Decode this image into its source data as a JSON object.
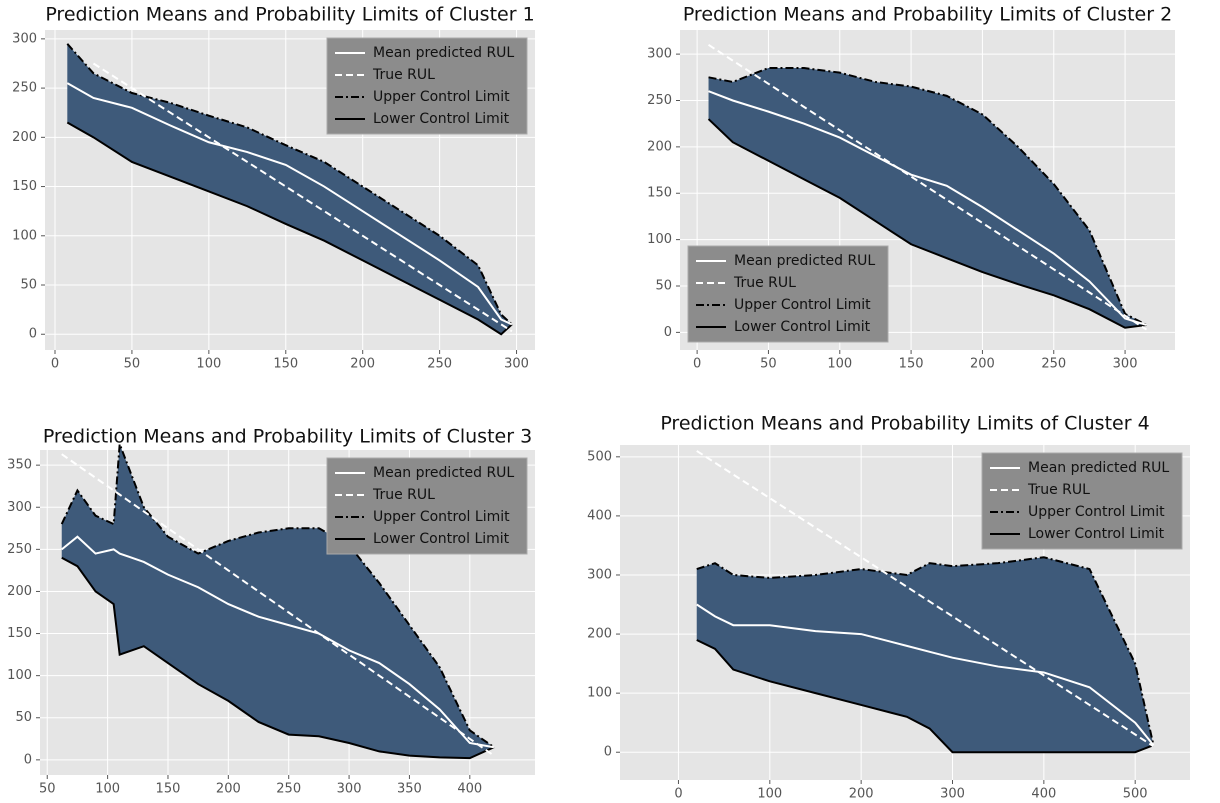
{
  "chart_data": [
    {
      "type": "line",
      "title": "Prediction Means and Probability Limits of Cluster 1",
      "x": [
        8,
        25,
        50,
        75,
        100,
        125,
        150,
        175,
        200,
        225,
        250,
        275,
        290,
        297
      ],
      "series": [
        {
          "name": "Mean predicted RUL",
          "color": "#ffffff",
          "dash": "solid",
          "values": [
            255,
            240,
            230,
            212,
            195,
            185,
            172,
            150,
            125,
            100,
            75,
            48,
            15,
            10
          ]
        },
        {
          "name": "True RUL",
          "color": "#ffffff",
          "dash": "dashed",
          "values": [
            null,
            275,
            250,
            225,
            200,
            175,
            150,
            125,
            100,
            75,
            50,
            25,
            10,
            3
          ]
        },
        {
          "name": "Upper Control Limit",
          "color": "#000000",
          "dash": "dashdot",
          "values": [
            295,
            265,
            245,
            235,
            222,
            210,
            192,
            175,
            150,
            125,
            100,
            70,
            20,
            10
          ]
        },
        {
          "name": "Lower Control Limit",
          "color": "#000000",
          "dash": "solid",
          "values": [
            215,
            200,
            175,
            160,
            145,
            130,
            112,
            95,
            75,
            55,
            35,
            15,
            0,
            10
          ]
        }
      ],
      "fill_color": "#3e5a7a",
      "xlim": [
        -6.5,
        312
      ],
      "ylim": [
        -16,
        309
      ],
      "xticks": [
        0,
        50,
        100,
        150,
        200,
        250,
        300
      ],
      "yticks": [
        0,
        50,
        100,
        150,
        200,
        250,
        300
      ],
      "grid": true,
      "legend": "upper right"
    },
    {
      "type": "line",
      "title": "Prediction Means and Probability Limits of Cluster 2",
      "x": [
        8,
        25,
        50,
        75,
        100,
        125,
        150,
        175,
        200,
        225,
        250,
        275,
        300,
        315
      ],
      "series": [
        {
          "name": "Mean predicted RUL",
          "color": "#ffffff",
          "dash": "solid",
          "values": [
            260,
            250,
            238,
            225,
            210,
            190,
            170,
            158,
            135,
            110,
            85,
            55,
            15,
            8
          ]
        },
        {
          "name": "True RUL",
          "color": "#ffffff",
          "dash": "dashed",
          "values": [
            310,
            293,
            268,
            243,
            218,
            193,
            168,
            143,
            118,
            93,
            68,
            43,
            18,
            3
          ]
        },
        {
          "name": "Upper Control Limit",
          "color": "#000000",
          "dash": "dashdot",
          "values": [
            275,
            270,
            285,
            285,
            280,
            270,
            265,
            255,
            235,
            200,
            160,
            110,
            20,
            8
          ]
        },
        {
          "name": "Lower Control Limit",
          "color": "#000000",
          "dash": "solid",
          "values": [
            230,
            205,
            185,
            165,
            145,
            120,
            95,
            80,
            65,
            52,
            40,
            25,
            5,
            8
          ]
        }
      ],
      "fill_color": "#3e5a7a",
      "xlim": [
        -12,
        335
      ],
      "ylim": [
        -19,
        326
      ],
      "xticks": [
        0,
        50,
        100,
        150,
        200,
        250,
        300
      ],
      "yticks": [
        0,
        50,
        100,
        150,
        200,
        250,
        300
      ],
      "grid": true,
      "legend": "lower left"
    },
    {
      "type": "line",
      "title": "Prediction Means and Probability Limits of Cluster 3",
      "x": [
        62,
        75,
        90,
        105,
        110,
        130,
        150,
        175,
        200,
        225,
        250,
        275,
        300,
        325,
        350,
        375,
        400,
        420
      ],
      "series": [
        {
          "name": "Mean predicted RUL",
          "color": "#ffffff",
          "dash": "solid",
          "values": [
            250,
            265,
            245,
            250,
            245,
            235,
            220,
            205,
            185,
            170,
            160,
            150,
            130,
            115,
            90,
            60,
            20,
            15
          ]
        },
        {
          "name": "True RUL",
          "color": "#ffffff",
          "dash": "dashed",
          "values": [
            363,
            350,
            335,
            320,
            315,
            295,
            275,
            250,
            225,
            200,
            175,
            150,
            125,
            100,
            75,
            50,
            25,
            5
          ]
        },
        {
          "name": "Upper Control Limit",
          "color": "#000000",
          "dash": "dashdot",
          "values": [
            280,
            320,
            290,
            280,
            375,
            300,
            265,
            245,
            260,
            270,
            275,
            275,
            255,
            210,
            160,
            110,
            35,
            15
          ]
        },
        {
          "name": "Lower Control Limit",
          "color": "#000000",
          "dash": "solid",
          "values": [
            240,
            230,
            200,
            185,
            125,
            135,
            115,
            90,
            70,
            45,
            30,
            28,
            20,
            10,
            5,
            3,
            2,
            15
          ]
        }
      ],
      "fill_color": "#3e5a7a",
      "xlim": [
        44,
        454
      ],
      "ylim": [
        -18,
        368
      ],
      "xticks": [
        50,
        100,
        150,
        200,
        250,
        300,
        350,
        400
      ],
      "yticks": [
        0,
        50,
        100,
        150,
        200,
        250,
        300,
        350
      ],
      "grid": true,
      "legend": "upper right"
    },
    {
      "type": "line",
      "title": "Prediction Means and Probability Limits of Cluster 4",
      "x": [
        20,
        40,
        60,
        100,
        150,
        200,
        250,
        275,
        300,
        350,
        400,
        450,
        500,
        520
      ],
      "series": [
        {
          "name": "Mean predicted RUL",
          "color": "#ffffff",
          "dash": "solid",
          "values": [
            250,
            230,
            215,
            215,
            205,
            200,
            180,
            170,
            160,
            145,
            135,
            110,
            50,
            12
          ]
        },
        {
          "name": "True RUL",
          "color": "#ffffff",
          "dash": "dashed",
          "values": [
            510,
            490,
            470,
            430,
            380,
            330,
            280,
            255,
            230,
            180,
            130,
            80,
            30,
            10
          ]
        },
        {
          "name": "Upper Control Limit",
          "color": "#000000",
          "dash": "dashdot",
          "values": [
            310,
            320,
            300,
            295,
            300,
            310,
            300,
            320,
            315,
            320,
            330,
            310,
            150,
            12
          ]
        },
        {
          "name": "Lower Control Limit",
          "color": "#000000",
          "dash": "solid",
          "values": [
            190,
            175,
            140,
            120,
            100,
            80,
            60,
            40,
            0,
            0,
            0,
            0,
            0,
            12
          ]
        }
      ],
      "fill_color": "#3e5a7a",
      "xlim": [
        -64,
        560
      ],
      "ylim": [
        -47,
        520
      ],
      "xticks": [
        0,
        100,
        200,
        300,
        400,
        500
      ],
      "yticks": [
        0,
        100,
        200,
        300,
        400,
        500
      ],
      "grid": true,
      "legend": "upper right"
    }
  ]
}
